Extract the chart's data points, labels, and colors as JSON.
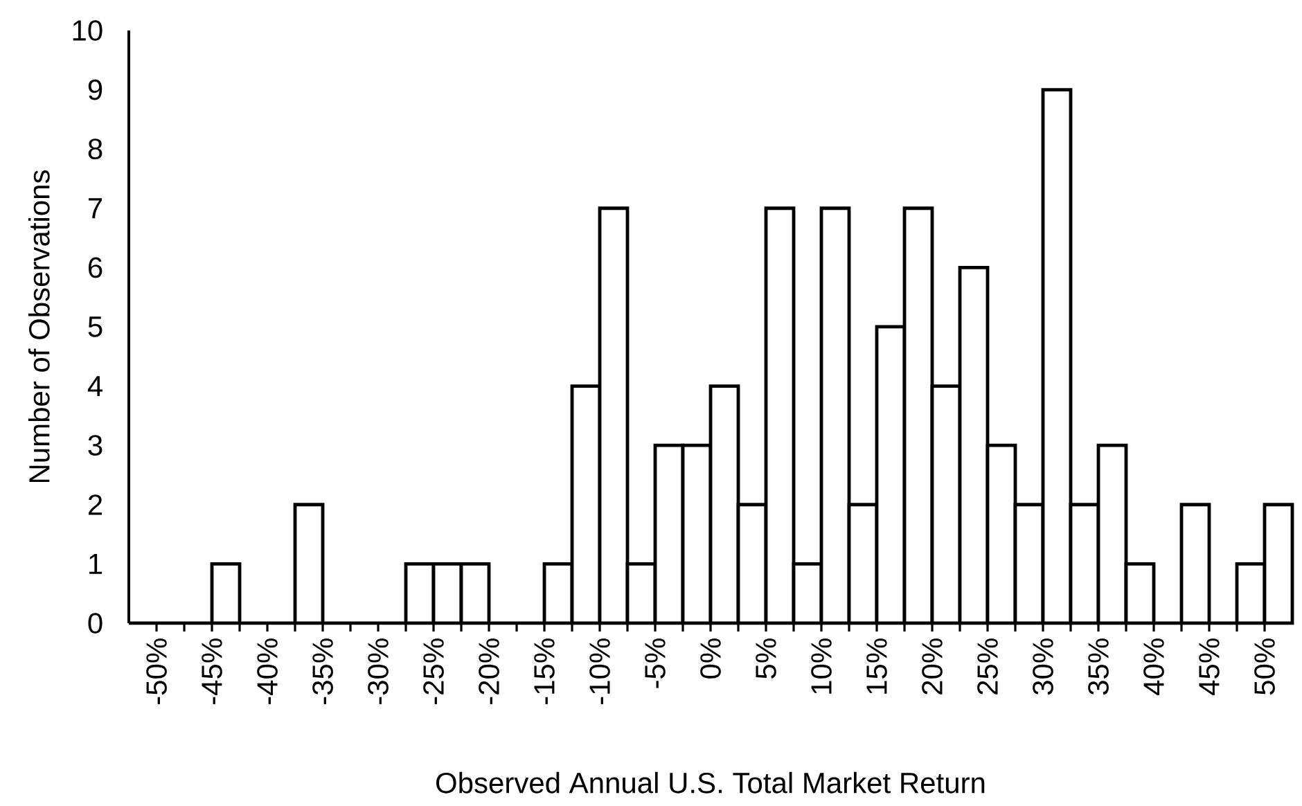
{
  "chart_data": {
    "type": "histogram",
    "xlabel": "Observed Annual U.S. Total Market Return",
    "ylabel": "Number of Observations",
    "color": "#ffffff",
    "bins": [
      -52.5,
      -50,
      -47.5,
      -45,
      -42.5,
      -40,
      -37.5,
      -35,
      -32.5,
      -30,
      -27.5,
      -25,
      -22.5,
      -20,
      -17.5,
      -15,
      -12.5,
      -10,
      -7.5,
      -5,
      -2.5,
      0,
      2.5,
      5,
      7.5,
      10,
      12.5,
      15,
      17.5,
      20,
      22.5,
      25,
      27.5,
      30,
      32.5,
      35,
      37.5,
      40,
      42.5,
      45,
      47.5,
      50,
      52.5
    ],
    "values": [
      0,
      0,
      0,
      1,
      0,
      0,
      2,
      0,
      0,
      0,
      1,
      1,
      1,
      0,
      0,
      1,
      4,
      7,
      1,
      3,
      3,
      4,
      2,
      7,
      1,
      7,
      2,
      5,
      7,
      4,
      6,
      3,
      2,
      9,
      2,
      3,
      1,
      0,
      2,
      0,
      1,
      2
    ],
    "xlim": [
      -52.5,
      52.5
    ],
    "ylim": [
      0,
      10
    ],
    "xticks": [
      {
        "value": -50,
        "label": "-50%"
      },
      {
        "value": -47.5,
        "label": null
      },
      {
        "value": -45,
        "label": "-45%"
      },
      {
        "value": -42.5,
        "label": null
      },
      {
        "value": -40,
        "label": "-40%"
      },
      {
        "value": -37.5,
        "label": null
      },
      {
        "value": -35,
        "label": "-35%"
      },
      {
        "value": -32.5,
        "label": null
      },
      {
        "value": -30,
        "label": "-30%"
      },
      {
        "value": -27.5,
        "label": null
      },
      {
        "value": -25,
        "label": "-25%"
      },
      {
        "value": -22.5,
        "label": null
      },
      {
        "value": -20,
        "label": "-20%"
      },
      {
        "value": -17.5,
        "label": null
      },
      {
        "value": -15,
        "label": "-15%"
      },
      {
        "value": -12.5,
        "label": null
      },
      {
        "value": -10,
        "label": "-10%"
      },
      {
        "value": -7.5,
        "label": null
      },
      {
        "value": -5,
        "label": "-5%"
      },
      {
        "value": -2.5,
        "label": null
      },
      {
        "value": 0,
        "label": "0%"
      },
      {
        "value": 2.5,
        "label": null
      },
      {
        "value": 5,
        "label": "5%"
      },
      {
        "value": 7.5,
        "label": null
      },
      {
        "value": 10,
        "label": "10%"
      },
      {
        "value": 12.5,
        "label": null
      },
      {
        "value": 15,
        "label": "15%"
      },
      {
        "value": 17.5,
        "label": null
      },
      {
        "value": 20,
        "label": "20%"
      },
      {
        "value": 22.5,
        "label": null
      },
      {
        "value": 25,
        "label": "25%"
      },
      {
        "value": 27.5,
        "label": null
      },
      {
        "value": 30,
        "label": "30%"
      },
      {
        "value": 32.5,
        "label": null
      },
      {
        "value": 35,
        "label": "35%"
      },
      {
        "value": 37.5,
        "label": null
      },
      {
        "value": 40,
        "label": "40%"
      },
      {
        "value": 42.5,
        "label": null
      },
      {
        "value": 45,
        "label": "45%"
      },
      {
        "value": 47.5,
        "label": null
      },
      {
        "value": 50,
        "label": "50%"
      }
    ],
    "yticks": [
      0,
      1,
      2,
      3,
      4,
      5,
      6,
      7,
      8,
      9,
      10
    ]
  }
}
